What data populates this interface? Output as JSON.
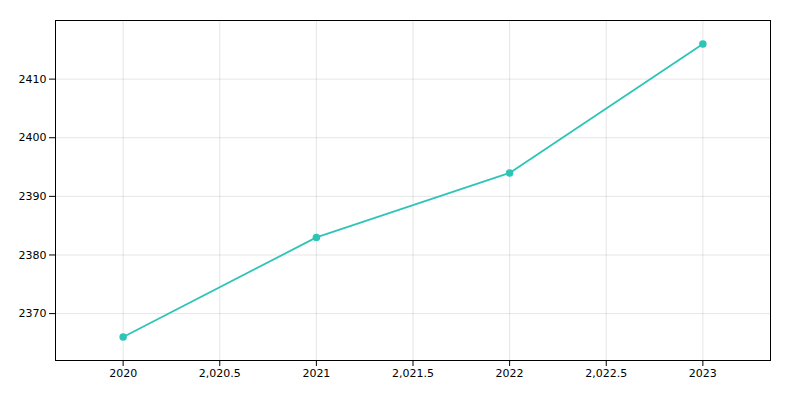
{
  "chart_data": {
    "type": "line",
    "x": [
      2020,
      2021,
      2022,
      2023
    ],
    "values": [
      2366,
      2383,
      2394,
      2416
    ],
    "color": "#2ec4b6",
    "marker": "circle",
    "xlim": [
      2019.65,
      2023.35
    ],
    "ylim": [
      2362,
      2420
    ],
    "xticks": [
      2020,
      {
        "value": 2020.5,
        "label": "2,020.5"
      },
      2021,
      {
        "value": 2021.5,
        "label": "2,021.5"
      },
      2022,
      {
        "value": 2022.5,
        "label": "2,022.5"
      },
      2023
    ],
    "yticks": [
      2370,
      2380,
      2390,
      2400,
      2410
    ],
    "grid": true
  }
}
